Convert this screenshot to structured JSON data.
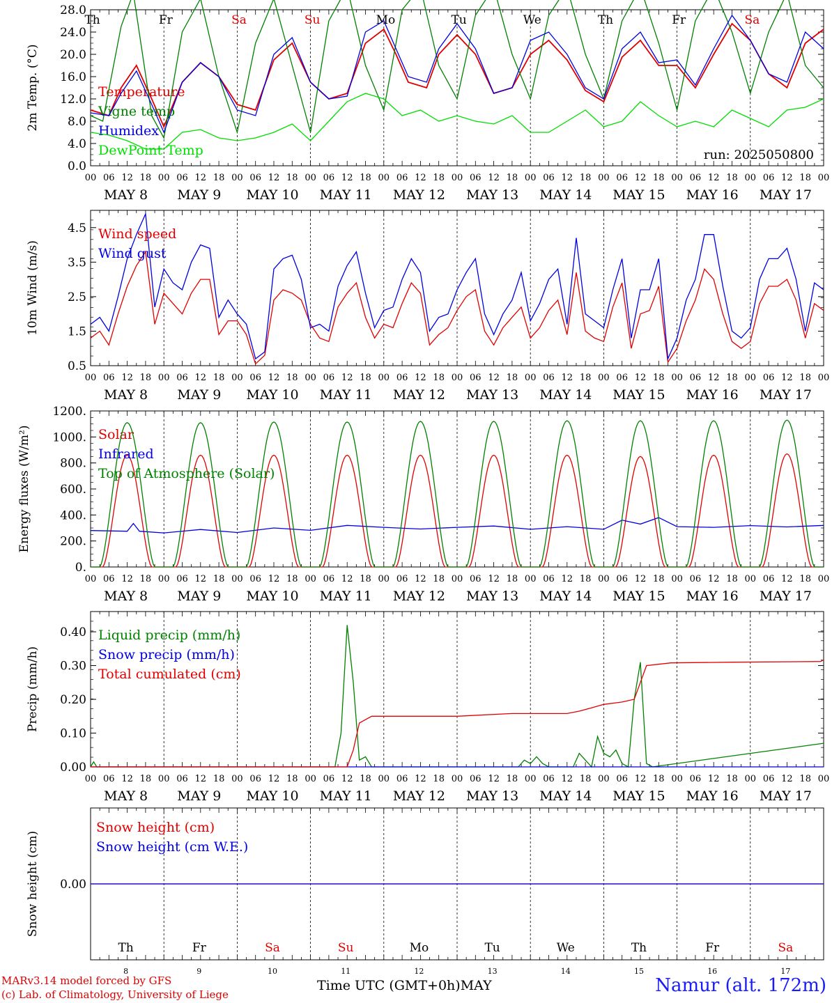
{
  "chart_data": [
    {
      "type": "line",
      "ylabel": "2m Temp. (°C)",
      "ylim": [
        0,
        28
      ],
      "yticks": [
        "0.0",
        "4.0",
        "8.0",
        "12.0",
        "16.0",
        "20.0",
        "24.0",
        "28.0"
      ],
      "weekday_labels": [
        "Th",
        "Fr",
        "Sa",
        "Su",
        "Mo",
        "Tu",
        "We",
        "Th",
        "Fr",
        "Sa"
      ],
      "run_label": "run: 2025050800",
      "series": [
        {
          "name": "Temperature",
          "color": "#e00000",
          "times": [
            0,
            6,
            10,
            15,
            20,
            24,
            30,
            36,
            42,
            48,
            54,
            60,
            66,
            72,
            78,
            84,
            90,
            96,
            100,
            104,
            110,
            114,
            120,
            126,
            132,
            138,
            144,
            150,
            156,
            162,
            168,
            174,
            180,
            186,
            192,
            198,
            204,
            210,
            216,
            222,
            228,
            234,
            240
          ],
          "values": [
            10,
            9,
            14,
            18,
            12,
            7,
            15,
            18.5,
            16,
            11,
            10,
            19,
            22,
            15,
            12,
            13,
            22,
            24.5,
            20,
            15,
            14,
            20,
            23.5,
            20,
            13,
            14,
            20,
            22.5,
            19,
            13.5,
            11.5,
            19.5,
            22.5,
            18,
            18,
            14,
            20,
            25.5,
            22.5,
            16.5,
            14,
            22,
            24.5
          ]
        },
        {
          "name": "Vigne temp",
          "color": "#008000",
          "times": [
            0,
            4,
            10,
            14,
            20,
            24,
            30,
            36,
            42,
            48,
            54,
            60,
            66,
            72,
            78,
            84,
            90,
            96,
            102,
            108,
            114,
            120,
            126,
            132,
            138,
            144,
            150,
            156,
            162,
            168,
            174,
            180,
            186,
            192,
            198,
            204,
            210,
            216,
            222,
            228,
            234,
            240
          ],
          "values": [
            9,
            8,
            25,
            31,
            9,
            5,
            24,
            30,
            16,
            6,
            22,
            30,
            18,
            6,
            26,
            32,
            18,
            10,
            28,
            32,
            18,
            12,
            27,
            32,
            20,
            12,
            27,
            32,
            20,
            12,
            26,
            32,
            22,
            10,
            26,
            32,
            24,
            13,
            24,
            31,
            18,
            14
          ]
        },
        {
          "name": "Humidex",
          "color": "#0000e0",
          "times": [
            0,
            6,
            10,
            15,
            20,
            24,
            30,
            36,
            42,
            48,
            54,
            60,
            66,
            72,
            78,
            84,
            90,
            96,
            100,
            104,
            110,
            114,
            120,
            126,
            132,
            138,
            144,
            150,
            156,
            162,
            168,
            174,
            180,
            186,
            192,
            198,
            204,
            210,
            216,
            222,
            228,
            234,
            240
          ],
          "values": [
            9.5,
            9,
            13,
            17,
            11,
            6,
            15,
            18.5,
            16,
            10,
            9,
            20,
            23,
            15,
            12,
            12.5,
            24,
            26,
            21,
            16,
            15,
            21,
            25.5,
            21,
            13,
            14,
            22.5,
            24,
            20,
            14,
            12,
            21,
            24,
            18.5,
            19,
            14.5,
            21,
            27,
            22.5,
            16.5,
            15,
            24,
            21
          ]
        },
        {
          "name": "DewPoint Temp",
          "color": "#00dd00",
          "times": [
            0,
            6,
            12,
            18,
            24,
            30,
            36,
            42,
            48,
            54,
            60,
            66,
            72,
            78,
            84,
            90,
            96,
            102,
            108,
            114,
            120,
            126,
            132,
            138,
            144,
            150,
            156,
            162,
            168,
            174,
            180,
            186,
            192,
            198,
            204,
            210,
            216,
            222,
            228,
            234,
            240
          ],
          "values": [
            6,
            5.5,
            4.5,
            3,
            3,
            6,
            6.5,
            5,
            4.5,
            5,
            6,
            7.5,
            4.5,
            8,
            11.5,
            13,
            12,
            9,
            10,
            8,
            9,
            8,
            7.5,
            9,
            6,
            6,
            8,
            10,
            7,
            8,
            11.5,
            9,
            7,
            8,
            7,
            10,
            8.5,
            7,
            10,
            10.5,
            12
          ]
        }
      ]
    },
    {
      "type": "line",
      "ylabel": "10m Wind (m/s)",
      "ylim": [
        0.5,
        5.0
      ],
      "yticks": [
        "0.5",
        "1.5",
        "2.5",
        "3.5",
        "4.5"
      ],
      "series": [
        {
          "name": "Wind speed",
          "color": "#e00000",
          "times": [
            0,
            3,
            6,
            9,
            12,
            15,
            18,
            21,
            24,
            27,
            30,
            33,
            36,
            39,
            42,
            45,
            48,
            51,
            54,
            57,
            60,
            63,
            66,
            69,
            72,
            75,
            78,
            81,
            84,
            87,
            90,
            93,
            96,
            99,
            102,
            105,
            108,
            111,
            114,
            117,
            120,
            123,
            126,
            129,
            132,
            135,
            138,
            141,
            144,
            147,
            150,
            153,
            156,
            159,
            162,
            165,
            168,
            171,
            174,
            177,
            180,
            183,
            186,
            189,
            192,
            195,
            198,
            201,
            204,
            207,
            210,
            213,
            216,
            219,
            222,
            225,
            228,
            231,
            234,
            237,
            240
          ],
          "values": [
            1.3,
            1.5,
            1.1,
            2.0,
            2.8,
            3.4,
            3.8,
            1.7,
            2.6,
            2.3,
            2.0,
            2.6,
            3.0,
            3.0,
            1.4,
            1.8,
            1.8,
            1.4,
            0.55,
            0.8,
            2.4,
            2.7,
            2.6,
            2.4,
            1.7,
            1.3,
            1.2,
            2.2,
            2.6,
            2.9,
            1.9,
            1.3,
            1.7,
            1.6,
            2.3,
            2.9,
            2.6,
            1.1,
            1.4,
            1.6,
            2.1,
            2.5,
            2.7,
            1.5,
            1.1,
            1.6,
            1.9,
            2.2,
            1.3,
            1.6,
            2.1,
            2.4,
            1.4,
            3.2,
            1.5,
            1.3,
            1.2,
            2.2,
            2.9,
            1.0,
            2.0,
            2.1,
            2.8,
            0.6,
            1.0,
            1.8,
            2.4,
            3.3,
            3.0,
            2.0,
            1.2,
            1.0,
            1.2,
            2.3,
            2.8,
            2.8,
            3.0,
            2.4,
            1.3,
            2.3,
            2.1
          ]
        },
        {
          "name": "Wind gust",
          "color": "#0000e0",
          "times": [
            0,
            3,
            6,
            9,
            12,
            15,
            18,
            21,
            24,
            27,
            30,
            33,
            36,
            39,
            42,
            45,
            48,
            51,
            54,
            57,
            60,
            63,
            66,
            69,
            72,
            75,
            78,
            81,
            84,
            87,
            90,
            93,
            96,
            99,
            102,
            105,
            108,
            111,
            114,
            117,
            120,
            123,
            126,
            129,
            132,
            135,
            138,
            141,
            144,
            147,
            150,
            153,
            156,
            159,
            162,
            165,
            168,
            171,
            174,
            177,
            180,
            183,
            186,
            189,
            192,
            195,
            198,
            201,
            204,
            207,
            210,
            213,
            216,
            219,
            222,
            225,
            228,
            231,
            234,
            237,
            240
          ],
          "values": [
            1.7,
            1.9,
            1.5,
            2.5,
            3.6,
            4.3,
            4.9,
            2.2,
            3.3,
            2.9,
            2.7,
            3.5,
            4.0,
            3.9,
            1.9,
            2.4,
            2.0,
            1.7,
            0.7,
            0.9,
            3.3,
            3.6,
            3.7,
            3.0,
            1.6,
            1.7,
            1.5,
            2.8,
            3.4,
            3.8,
            2.6,
            1.6,
            2.1,
            2.2,
            3.0,
            3.6,
            3.2,
            1.5,
            1.9,
            2.0,
            2.7,
            3.2,
            3.6,
            2.0,
            1.4,
            2.0,
            2.4,
            3.2,
            1.8,
            2.3,
            3.0,
            3.3,
            1.7,
            4.2,
            2.0,
            1.8,
            1.6,
            2.7,
            3.6,
            1.3,
            2.7,
            2.7,
            3.6,
            0.7,
            1.3,
            2.4,
            3.0,
            4.3,
            4.3,
            2.8,
            1.5,
            1.3,
            1.6,
            3.0,
            3.6,
            3.6,
            3.9,
            3.0,
            1.5,
            2.9,
            2.7
          ]
        }
      ]
    },
    {
      "type": "line",
      "ylabel": "Energy fluxes (W/m²)",
      "ylim": [
        0,
        1200
      ],
      "yticks": [
        "0.",
        "200.",
        "400.",
        "600.",
        "800.",
        "1000.",
        "1200."
      ],
      "series": [
        {
          "name": "Solar",
          "color": "#e00000",
          "daily_peaks": [
            860,
            860,
            860,
            860,
            860,
            860,
            860,
            850,
            860,
            870
          ],
          "sunrise_hour": 4,
          "sunset_hour": 20
        },
        {
          "name": "Infrared",
          "color": "#0000e0",
          "times": [
            0,
            12,
            14,
            16,
            24,
            36,
            48,
            60,
            72,
            84,
            96,
            108,
            120,
            132,
            144,
            156,
            168,
            174,
            180,
            186,
            192,
            204,
            216,
            228,
            240
          ],
          "values": [
            280,
            275,
            335,
            275,
            262,
            288,
            265,
            300,
            282,
            320,
            305,
            292,
            305,
            315,
            290,
            310,
            290,
            360,
            330,
            380,
            310,
            305,
            318,
            308,
            320
          ]
        },
        {
          "name": "Top of Atmosphere (Solar)",
          "color": "#008000",
          "daily_peaks": [
            1110,
            1110,
            1115,
            1115,
            1120,
            1120,
            1125,
            1125,
            1125,
            1130
          ],
          "sunrise_hour": 3,
          "sunset_hour": 21
        }
      ]
    },
    {
      "type": "line",
      "ylabel": "Precip (mm/h)",
      "ylim": [
        0,
        0.46
      ],
      "yticks": [
        "0.00",
        "0.10",
        "0.20",
        "0.30",
        "0.40"
      ],
      "series": [
        {
          "name": "Liquid precip (mm/h)",
          "color": "#008000",
          "times": [
            0,
            1,
            2,
            3,
            80,
            82,
            84,
            86,
            88,
            90,
            92,
            94,
            140,
            142,
            144,
            146,
            148,
            150,
            158,
            160,
            162,
            164,
            166,
            168,
            170,
            172,
            174,
            176,
            178,
            180,
            182,
            184,
            240
          ],
          "values": [
            0,
            0.015,
            0,
            0,
            0,
            0.1,
            0.42,
            0.25,
            0.02,
            0.03,
            0,
            0,
            0,
            0.02,
            0.01,
            0.03,
            0.01,
            0,
            0,
            0.04,
            0.02,
            0,
            0.09,
            0.04,
            0.03,
            0.05,
            0.01,
            0,
            0.2,
            0.31,
            0.01,
            0,
            0.07
          ]
        },
        {
          "name": "Snow precip (mm/h)",
          "color": "#0000e0",
          "times": [
            0,
            240
          ],
          "values": [
            0,
            0
          ]
        },
        {
          "name": "Total cumulated (cm)",
          "color": "#e00000",
          "times": [
            0,
            84,
            86,
            88,
            92,
            96,
            120,
            138,
            156,
            160,
            164,
            168,
            174,
            178,
            180,
            182,
            190,
            210,
            239,
            240
          ],
          "values": [
            0,
            0,
            0.05,
            0.13,
            0.15,
            0.15,
            0.15,
            0.158,
            0.158,
            0.165,
            0.175,
            0.185,
            0.192,
            0.2,
            0.25,
            0.3,
            0.308,
            0.31,
            0.312,
            0.317
          ]
        }
      ]
    },
    {
      "type": "line",
      "ylabel": "Snow height (cm)",
      "yticks": [
        "0.00"
      ],
      "series": [
        {
          "name": "Snow height (cm)",
          "color": "#e00000",
          "times": [
            0,
            240
          ],
          "values": [
            0,
            0
          ]
        },
        {
          "name": "Snow height (cm W.E.)",
          "color": "#0000e0",
          "times": [
            0,
            240
          ],
          "values": [
            0,
            0
          ]
        }
      ],
      "weekday_labels": [
        "Th",
        "Fr",
        "Sa",
        "Su",
        "Mo",
        "Tu",
        "We",
        "Th",
        "Fr",
        "Sa"
      ],
      "day_numbers": [
        "8",
        "9",
        "10",
        "11",
        "12",
        "13",
        "14",
        "15",
        "16",
        "17"
      ]
    }
  ],
  "x_axis": {
    "hour_ticks": [
      "00",
      "06",
      "12",
      "18"
    ],
    "end_tick": "00",
    "date_labels": [
      "MAY  8",
      "MAY  9",
      "MAY 10",
      "MAY 11",
      "MAY 12",
      "MAY 13",
      "MAY 14",
      "MAY 15",
      "MAY 16",
      "MAY 17"
    ],
    "title": "Time UTC (GMT+0h)",
    "month": "MAY"
  },
  "weekend_color": "#e00000",
  "weekday_color": "#000000",
  "credits": [
    "MARv3.14 model forced by GFS",
    "(c) Lab. of Climatology, University of Liege"
  ],
  "station": "Namur (alt. 172m)"
}
